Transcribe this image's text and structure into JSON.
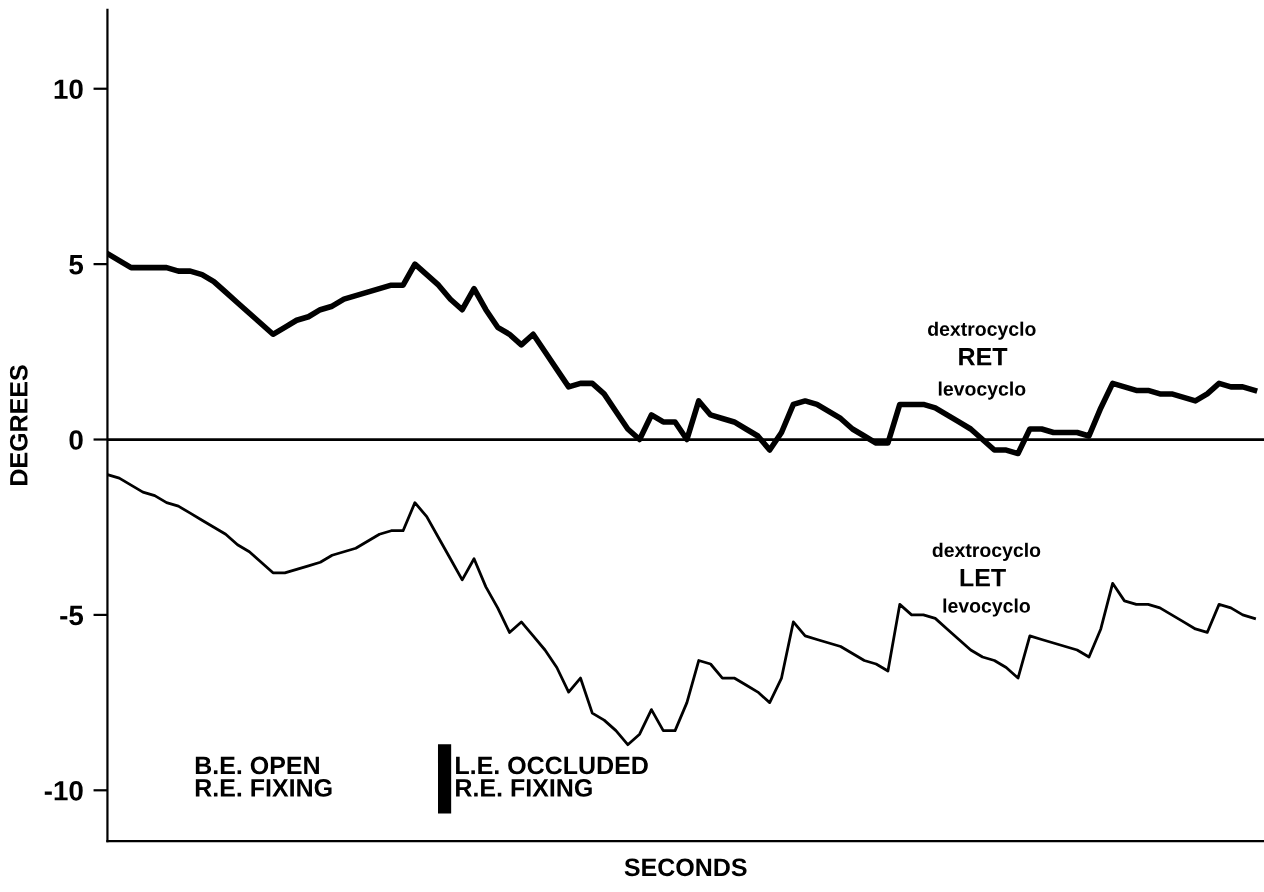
{
  "chart_data": {
    "type": "line",
    "xlabel": "SECONDS",
    "ylabel": "DEGREES",
    "categories": [
      null,
      null,
      null,
      null,
      null,
      null,
      null,
      null,
      null,
      null,
      null,
      null,
      null,
      null,
      null,
      null,
      null,
      null,
      null,
      null,
      null,
      null,
      null,
      null,
      null,
      null,
      null,
      null,
      null,
      null,
      null,
      null,
      null,
      null,
      null,
      null,
      null,
      null,
      null,
      null,
      null,
      null,
      null,
      null,
      null,
      null,
      null,
      null,
      null,
      null,
      null,
      null,
      null,
      null,
      null,
      null,
      null,
      null,
      null,
      null,
      null,
      null,
      null,
      null,
      null,
      null,
      null,
      null,
      null,
      null,
      null,
      null,
      null,
      null,
      null,
      null,
      null,
      null,
      null,
      null,
      null,
      null,
      null,
      null,
      null,
      null,
      null,
      null,
      null,
      null,
      null,
      null,
      null,
      null,
      null,
      null,
      null,
      null
    ],
    "series": [
      {
        "name": "RET",
        "color": "#000000",
        "values": [
          5.3,
          5.1,
          4.9,
          4.9,
          4.9,
          4.9,
          4.8,
          4.8,
          4.7,
          4.5,
          4.2,
          3.9,
          3.6,
          3.3,
          3.0,
          3.2,
          3.4,
          3.5,
          3.7,
          3.8,
          4.0,
          4.1,
          4.2,
          4.3,
          4.4,
          4.4,
          5.0,
          4.7,
          4.4,
          4.0,
          3.7,
          4.3,
          3.7,
          3.2,
          3.0,
          2.7,
          3.0,
          2.5,
          2.0,
          1.5,
          1.6,
          1.6,
          1.3,
          0.8,
          0.3,
          0.0,
          0.7,
          0.5,
          0.5,
          0.0,
          1.1,
          0.7,
          0.6,
          0.5,
          0.3,
          0.1,
          -0.3,
          0.2,
          1.0,
          1.1,
          1.0,
          0.8,
          0.6,
          0.3,
          0.1,
          -0.1,
          -0.1,
          1.0,
          1.0,
          1.0,
          0.9,
          0.7,
          0.5,
          0.3,
          0.0,
          -0.3,
          -0.3,
          -0.4,
          0.3,
          0.3,
          0.2,
          0.2,
          0.2,
          0.1,
          0.9,
          1.6,
          1.5,
          1.4,
          1.4,
          1.3,
          1.3,
          1.2,
          1.1,
          1.3,
          1.6,
          1.5,
          1.5,
          1.4
        ]
      },
      {
        "name": "LET",
        "color": "#000000",
        "values": [
          -1.0,
          -1.1,
          -1.3,
          -1.5,
          -1.6,
          -1.8,
          -1.9,
          -2.1,
          -2.3,
          -2.5,
          -2.7,
          -3.0,
          -3.2,
          -3.5,
          -3.8,
          -3.8,
          -3.7,
          -3.6,
          -3.5,
          -3.3,
          -3.2,
          -3.1,
          -2.9,
          -2.7,
          -2.6,
          -2.6,
          -1.8,
          -2.2,
          -2.8,
          -3.4,
          -4.0,
          -3.4,
          -4.2,
          -4.8,
          -5.5,
          -5.2,
          -5.6,
          -6.0,
          -6.5,
          -7.2,
          -6.8,
          -7.8,
          -8.0,
          -8.3,
          -8.7,
          -8.4,
          -7.7,
          -8.3,
          -8.3,
          -7.5,
          -6.3,
          -6.4,
          -6.8,
          -6.8,
          -7.0,
          -7.2,
          -7.5,
          -6.8,
          -5.2,
          -5.6,
          -5.7,
          -5.8,
          -5.9,
          -6.1,
          -6.3,
          -6.4,
          -6.6,
          -4.7,
          -5.0,
          -5.0,
          -5.1,
          -5.4,
          -5.7,
          -6.0,
          -6.2,
          -6.3,
          -6.5,
          -6.8,
          -5.6,
          -5.7,
          -5.8,
          -5.9,
          -6.0,
          -6.2,
          -5.4,
          -4.1,
          -4.6,
          -4.7,
          -4.7,
          -4.8,
          -5.0,
          -5.2,
          -5.4,
          -5.5,
          -4.7,
          -4.8,
          -5.0,
          -5.1
        ]
      }
    ],
    "ylim": [
      -11.45,
      12.25
    ],
    "yticks": [
      -10,
      -5,
      0,
      5,
      10
    ],
    "tick_labels": "y",
    "ref_lines": [
      {
        "axis": "y",
        "value": 0,
        "color": "#000000"
      }
    ],
    "grid": false,
    "legend": false,
    "marker": "none",
    "line_style": "solid",
    "annotations": [
      "dextrocyclo",
      "levocyclo",
      "dextrocyclo",
      "levocyclo",
      "B.E. OPEN\nR.E. FIXING",
      "L.E. OCCLUDED\nR.E. FIXING"
    ]
  }
}
